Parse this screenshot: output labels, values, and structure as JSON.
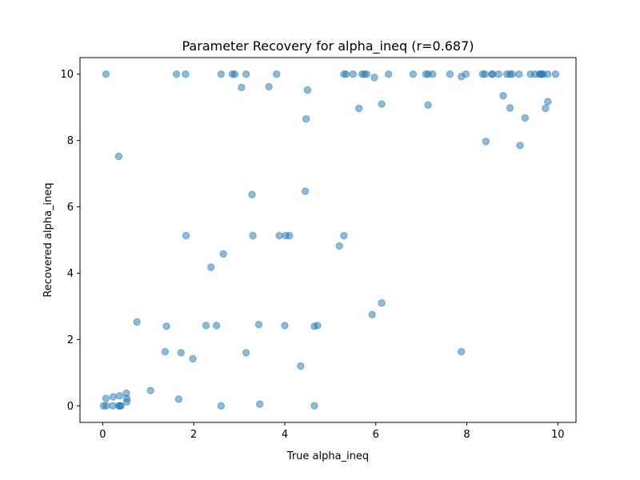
{
  "chart_data": {
    "type": "scatter",
    "title": "Parameter Recovery for alpha_ineq (r=0.687)",
    "xlabel": "True alpha_ineq",
    "ylabel": "Recovered alpha_ineq",
    "xlim": [
      -0.5,
      10.4
    ],
    "ylim": [
      -0.5,
      10.5
    ],
    "xticks": [
      0,
      2,
      4,
      6,
      8,
      10
    ],
    "yticks": [
      0,
      2,
      4,
      6,
      8,
      10
    ],
    "grid": false,
    "legend": "none",
    "color": "#1f77b4",
    "points": [
      [
        0.07,
        10.0
      ],
      [
        1.62,
        10.0
      ],
      [
        1.82,
        10.0
      ],
      [
        2.6,
        10.0
      ],
      [
        2.85,
        10.0
      ],
      [
        2.9,
        10.0
      ],
      [
        3.15,
        10.0
      ],
      [
        3.82,
        10.0
      ],
      [
        3.05,
        9.6
      ],
      [
        3.65,
        9.62
      ],
      [
        4.5,
        9.52
      ],
      [
        5.3,
        10.0
      ],
      [
        5.35,
        10.0
      ],
      [
        5.5,
        10.0
      ],
      [
        5.7,
        10.0
      ],
      [
        5.75,
        10.0
      ],
      [
        5.8,
        10.0
      ],
      [
        5.97,
        9.9
      ],
      [
        6.28,
        10.0
      ],
      [
        6.82,
        10.0
      ],
      [
        7.1,
        10.0
      ],
      [
        7.15,
        10.0
      ],
      [
        7.25,
        10.0
      ],
      [
        7.63,
        10.0
      ],
      [
        7.88,
        9.93
      ],
      [
        7.98,
        10.0
      ],
      [
        8.35,
        10.0
      ],
      [
        8.4,
        10.0
      ],
      [
        8.55,
        10.0
      ],
      [
        8.57,
        10.0
      ],
      [
        8.7,
        10.0
      ],
      [
        8.88,
        10.0
      ],
      [
        8.95,
        10.0
      ],
      [
        9.0,
        10.0
      ],
      [
        9.15,
        10.0
      ],
      [
        9.4,
        10.0
      ],
      [
        9.5,
        10.0
      ],
      [
        9.6,
        10.0
      ],
      [
        9.62,
        10.0
      ],
      [
        9.65,
        10.0
      ],
      [
        9.68,
        10.0
      ],
      [
        9.78,
        10.0
      ],
      [
        9.95,
        10.0
      ],
      [
        5.63,
        8.97
      ],
      [
        6.13,
        9.1
      ],
      [
        7.15,
        9.07
      ],
      [
        8.8,
        9.35
      ],
      [
        8.95,
        8.98
      ],
      [
        9.28,
        8.68
      ],
      [
        9.73,
        8.97
      ],
      [
        9.78,
        9.17
      ],
      [
        4.47,
        8.65
      ],
      [
        8.42,
        7.97
      ],
      [
        9.17,
        7.85
      ],
      [
        0.35,
        7.52
      ],
      [
        3.28,
        6.37
      ],
      [
        4.45,
        6.47
      ],
      [
        1.83,
        5.13
      ],
      [
        3.3,
        5.13
      ],
      [
        3.88,
        5.13
      ],
      [
        4.02,
        5.13
      ],
      [
        4.1,
        5.13
      ],
      [
        5.3,
        5.13
      ],
      [
        5.2,
        4.82
      ],
      [
        2.65,
        4.58
      ],
      [
        2.38,
        4.18
      ],
      [
        6.13,
        3.1
      ],
      [
        5.92,
        2.75
      ],
      [
        0.75,
        2.53
      ],
      [
        1.4,
        2.4
      ],
      [
        2.27,
        2.42
      ],
      [
        2.5,
        2.42
      ],
      [
        3.43,
        2.45
      ],
      [
        4.0,
        2.42
      ],
      [
        4.65,
        2.4
      ],
      [
        4.72,
        2.42
      ],
      [
        1.37,
        1.63
      ],
      [
        1.72,
        1.6
      ],
      [
        3.15,
        1.6
      ],
      [
        7.88,
        1.63
      ],
      [
        1.98,
        1.42
      ],
      [
        4.35,
        1.2
      ],
      [
        1.05,
        0.46
      ],
      [
        0.52,
        0.38
      ],
      [
        0.37,
        0.3
      ],
      [
        0.23,
        0.27
      ],
      [
        0.07,
        0.22
      ],
      [
        0.53,
        0.22
      ],
      [
        1.67,
        0.2
      ],
      [
        0.53,
        0.12
      ],
      [
        0.02,
        0.0
      ],
      [
        0.08,
        0.0
      ],
      [
        0.22,
        0.0
      ],
      [
        0.35,
        0.0
      ],
      [
        0.38,
        0.0
      ],
      [
        0.4,
        0.0
      ],
      [
        2.6,
        0.0
      ],
      [
        4.65,
        0.0
      ],
      [
        3.45,
        0.05
      ]
    ]
  }
}
